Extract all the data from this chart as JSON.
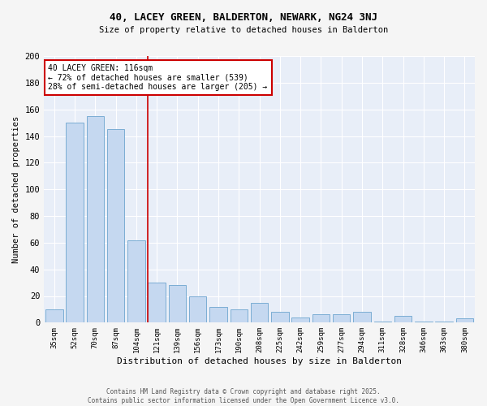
{
  "title": "40, LACEY GREEN, BALDERTON, NEWARK, NG24 3NJ",
  "subtitle": "Size of property relative to detached houses in Balderton",
  "xlabel": "Distribution of detached houses by size in Balderton",
  "ylabel": "Number of detached properties",
  "categories": [
    "35sqm",
    "52sqm",
    "70sqm",
    "87sqm",
    "104sqm",
    "121sqm",
    "139sqm",
    "156sqm",
    "173sqm",
    "190sqm",
    "208sqm",
    "225sqm",
    "242sqm",
    "259sqm",
    "277sqm",
    "294sqm",
    "311sqm",
    "328sqm",
    "346sqm",
    "363sqm",
    "380sqm"
  ],
  "values": [
    10,
    150,
    155,
    145,
    62,
    30,
    28,
    20,
    12,
    10,
    15,
    8,
    4,
    6,
    6,
    8,
    1,
    5,
    1,
    1,
    3
  ],
  "bar_color": "#C5D8F0",
  "bar_edge_color": "#7BADD4",
  "background_color": "#E8EEF8",
  "grid_color": "#FFFFFF",
  "red_line_x": 4.55,
  "annotation_text": "40 LACEY GREEN: 116sqm\n← 72% of detached houses are smaller (539)\n28% of semi-detached houses are larger (205) →",
  "annotation_box_color": "#FFFFFF",
  "annotation_box_edge": "#CC0000",
  "footer": "Contains HM Land Registry data © Crown copyright and database right 2025.\nContains public sector information licensed under the Open Government Licence v3.0.",
  "ylim": [
    0,
    200
  ],
  "yticks": [
    0,
    20,
    40,
    60,
    80,
    100,
    120,
    140,
    160,
    180,
    200
  ],
  "fig_bg": "#F5F5F5"
}
